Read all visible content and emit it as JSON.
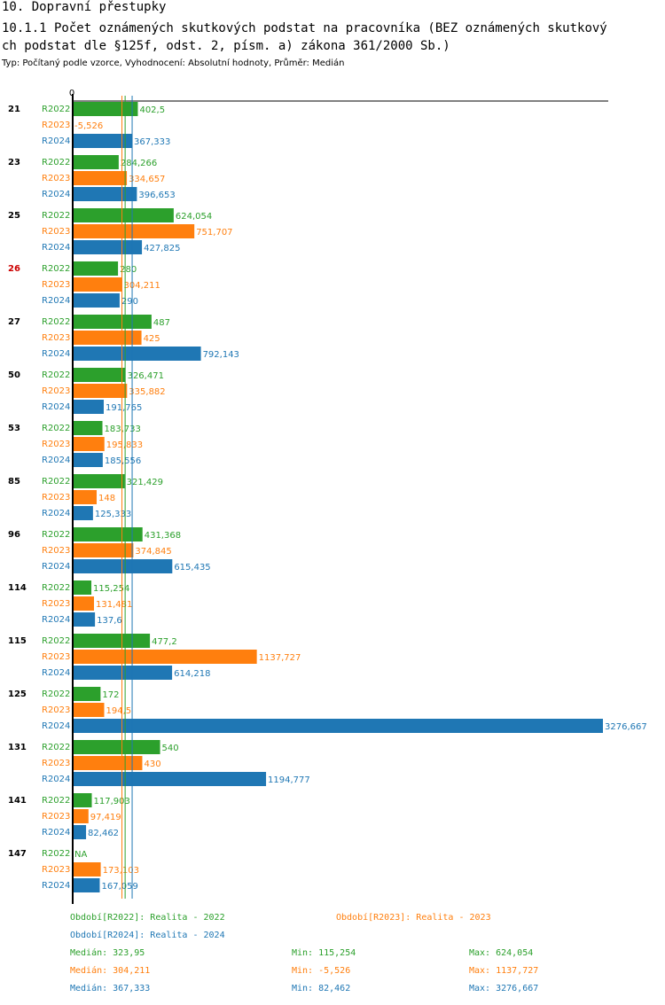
{
  "page": {
    "title": "10. Dopravní přestupky",
    "subtitle_line1": "10.1.1 Počet oznámených skutkových podstat na pracovníka (BEZ oznámených skutkový",
    "subtitle_line2": "ch podstat dle §125f, odst. 2, písm. a) zákona 361/2000 Sb.)",
    "note": "Typ: Počítaný podle vzorce, Vyhodnocení: Absolutní hodnoty, Průměr: Medián"
  },
  "colors": {
    "R2022": "#2ca02c",
    "R2023": "#ff7f0e",
    "R2024": "#1f77b4",
    "highlight": "#cc0000",
    "text": "#000000"
  },
  "chart_data": {
    "type": "bar",
    "orientation": "horizontal",
    "axis_zero_label": "0",
    "x_max": 3276.667,
    "categories": [
      "21",
      "23",
      "25",
      "26",
      "27",
      "50",
      "53",
      "85",
      "96",
      "114",
      "115",
      "125",
      "131",
      "141",
      "147"
    ],
    "highlight_category": "26",
    "series": [
      {
        "name": "R2022",
        "labels": [
          "402,5",
          "284,266",
          "624,054",
          "280",
          "487",
          "326,471",
          "183,733",
          "321,429",
          "431,368",
          "115,254",
          "477,2",
          "172",
          "540",
          "117,903",
          "NA"
        ],
        "values": [
          402.5,
          284.266,
          624.054,
          280,
          487,
          326.471,
          183.733,
          321.429,
          431.368,
          115.254,
          477.2,
          172,
          540,
          117.903,
          null
        ]
      },
      {
        "name": "R2023",
        "labels": [
          "-5,526",
          "334,657",
          "751,707",
          "304,211",
          "425",
          "335,882",
          "195,833",
          "148",
          "374,845",
          "131,481",
          "1137,727",
          "194,5",
          "430",
          "97,419",
          "173,103"
        ],
        "values": [
          -5.526,
          334.657,
          751.707,
          304.211,
          425,
          335.882,
          195.833,
          148,
          374.845,
          131.481,
          1137.727,
          194.5,
          430,
          97.419,
          173.103
        ]
      },
      {
        "name": "R2024",
        "labels": [
          "367,333",
          "396,653",
          "427,825",
          "290",
          "792,143",
          "191,765",
          "185,556",
          "125,333",
          "615,435",
          "137,6",
          "614,218",
          "3276,667",
          "1194,777",
          "82,462",
          "167,059"
        ],
        "values": [
          367.333,
          396.653,
          427.825,
          290,
          792.143,
          191.765,
          185.556,
          125.333,
          615.435,
          137.6,
          614.218,
          3276.667,
          1194.777,
          82.462,
          167.059
        ]
      }
    ],
    "medians": {
      "R2022": 323.95,
      "R2023": 304.211,
      "R2024": 367.333
    }
  },
  "legend": {
    "periods": [
      {
        "key": "R2022",
        "text": "Období[R2022]: Realita - 2022"
      },
      {
        "key": "R2023",
        "text": "Období[R2023]: Realita - 2023"
      },
      {
        "key": "R2024",
        "text": "Období[R2024]: Realita - 2024"
      }
    ],
    "stats": [
      {
        "key": "R2022",
        "median": "Medián: 323,95",
        "min": "Min: 115,254",
        "max": "Max: 624,054"
      },
      {
        "key": "R2023",
        "median": "Medián: 304,211",
        "min": "Min: -5,526",
        "max": "Max: 1137,727"
      },
      {
        "key": "R2024",
        "median": "Medián: 367,333",
        "min": "Min: 82,462",
        "max": "Max: 3276,667"
      }
    ]
  }
}
